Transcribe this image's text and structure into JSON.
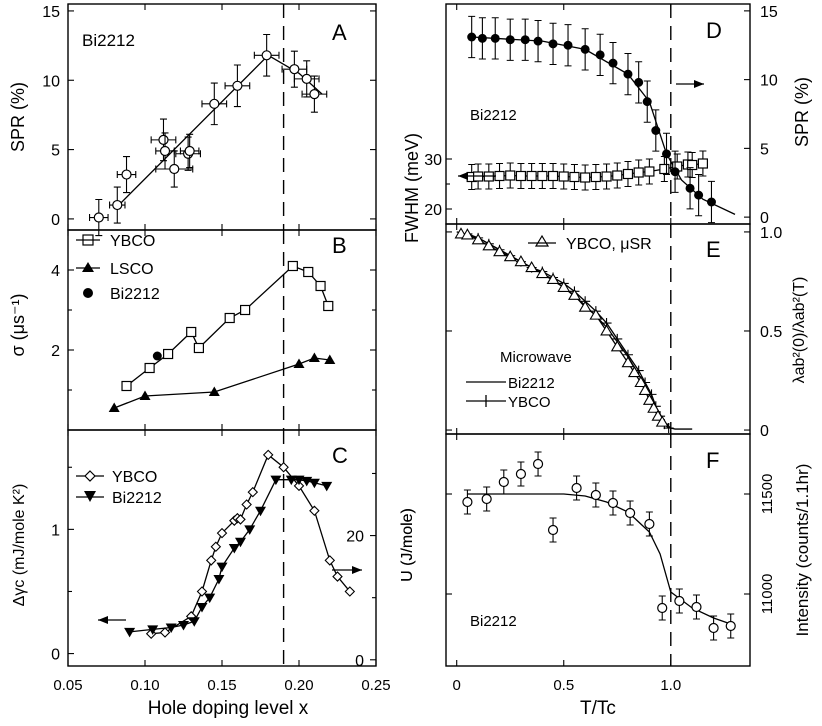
{
  "figure": {
    "left_xlabel": "Hole doping level x",
    "right_xlabel": "T/Tc",
    "left_xticks": [
      "0.05",
      "0.10",
      "0.15",
      "0.20",
      "0.25"
    ],
    "right_xticks": [
      "0",
      "0.5",
      "1.0"
    ]
  },
  "chart_data": [
    {
      "id": "A",
      "type": "scatter",
      "panel_letter": "A",
      "label": "Bi2212",
      "ylabel": "SPR (%)",
      "xlim": [
        0.05,
        0.25
      ],
      "ylim": [
        -0.8,
        15.5
      ],
      "yticks": [
        "0",
        "5",
        "10",
        "15"
      ],
      "series": [
        {
          "name": "Bi2212",
          "marker": "circle-open",
          "x": [
            0.07,
            0.082,
            0.088,
            0.112,
            0.113,
            0.119,
            0.128,
            0.129,
            0.145,
            0.16,
            0.179,
            0.197,
            0.205,
            0.21
          ],
          "y": [
            0.1,
            1.0,
            3.2,
            5.7,
            4.9,
            3.6,
            4.7,
            4.9,
            8.3,
            9.6,
            11.8,
            10.8,
            10.1,
            9.0
          ],
          "yerr": [
            1.3,
            1.3,
            1.3,
            1.5,
            1.3,
            1.3,
            1.2,
            1.2,
            1.5,
            1.5,
            1.5,
            1.3,
            1.3,
            1.3
          ],
          "xerr": [
            0.006,
            0.005,
            0.006,
            0.008,
            0.006,
            0.012,
            0.008,
            0.006,
            0.008,
            0.008,
            0.008,
            0.008,
            0.008,
            0.008
          ]
        }
      ],
      "fit_line": {
        "x": [
          0.083,
          0.18,
          0.2,
          0.215
        ],
        "y": [
          1.0,
          11.8,
          10.5,
          9.0
        ]
      },
      "vline_x": 0.19
    },
    {
      "id": "B",
      "type": "line",
      "panel_letter": "B",
      "ylabel": "σ (μs⁻¹)",
      "xlim": [
        0.05,
        0.25
      ],
      "ylim": [
        0,
        5
      ],
      "yticks": [
        "2",
        "4"
      ],
      "series": [
        {
          "name": "YBCO",
          "marker": "square-open",
          "x": [
            0.088,
            0.103,
            0.115,
            0.13,
            0.135,
            0.155,
            0.165,
            0.196,
            0.206,
            0.214,
            0.219
          ],
          "y": [
            1.1,
            1.55,
            1.9,
            2.45,
            2.05,
            2.8,
            3.0,
            4.1,
            3.95,
            3.6,
            3.1
          ]
        },
        {
          "name": "LSCO",
          "marker": "triangle-filled",
          "x": [
            0.08,
            0.1,
            0.145,
            0.2,
            0.21,
            0.22
          ],
          "y": [
            0.55,
            0.85,
            0.95,
            1.65,
            1.8,
            1.75
          ]
        },
        {
          "name": "Bi2212",
          "marker": "circle-filled",
          "x": [
            0.108
          ],
          "y": [
            1.85
          ]
        }
      ],
      "vline_x": 0.19
    },
    {
      "id": "C",
      "type": "line",
      "panel_letter": "C",
      "ylabel": "Δγc (mJ/mole K²)",
      "y2label": "U (J/mole)",
      "xlim": [
        0.05,
        0.25
      ],
      "ylim": [
        -0.1,
        1.8
      ],
      "y2lim": [
        -1,
        37
      ],
      "yticks": [
        "0",
        "1"
      ],
      "y2ticks": [
        "0",
        "20"
      ],
      "series": [
        {
          "name": "YBCO",
          "marker": "diamond-open",
          "axis": "left",
          "x": [
            0.104,
            0.113,
            0.13,
            0.137,
            0.143,
            0.146,
            0.15,
            0.158,
            0.16,
            0.162,
            0.166,
            0.17,
            0.18,
            0.19,
            0.2,
            0.21,
            0.22,
            0.225,
            0.233
          ],
          "y": [
            0.16,
            0.17,
            0.3,
            0.5,
            0.75,
            0.86,
            0.97,
            1.07,
            1.09,
            1.08,
            1.2,
            1.3,
            1.6,
            1.5,
            1.35,
            1.15,
            0.75,
            0.62,
            0.5
          ]
        },
        {
          "name": "Bi2212",
          "marker": "triangle-down-filled",
          "axis": "right",
          "x": [
            0.09,
            0.105,
            0.117,
            0.125,
            0.132,
            0.137,
            0.142,
            0.148,
            0.15,
            0.158,
            0.162,
            0.168,
            0.175,
            0.185,
            0.195,
            0.2,
            0.205,
            0.21,
            0.218
          ],
          "y": [
            4.5,
            4.9,
            5.2,
            5.6,
            6.2,
            8.5,
            10,
            13,
            15,
            18,
            19,
            21,
            24,
            29,
            29,
            29,
            28.8,
            28.5,
            28
          ]
        }
      ],
      "arrows": [
        {
          "side": "left"
        },
        {
          "side": "right"
        }
      ],
      "vline_x": 0.19
    },
    {
      "id": "D",
      "type": "scatter",
      "panel_letter": "D",
      "label": "Bi2212",
      "ylabel": "FWHM (meV)",
      "y2label": "SPR (%)",
      "xlim": [
        -0.05,
        1.37
      ],
      "ylim": [
        17,
        61
      ],
      "y2lim": [
        -0.5,
        15.5
      ],
      "yticks": [
        "20",
        "30"
      ],
      "y2ticks": [
        "0",
        "5",
        "10",
        "15"
      ],
      "series": [
        {
          "name": "SPR",
          "marker": "circle-filled",
          "axis": "right",
          "x": [
            0.07,
            0.12,
            0.18,
            0.25,
            0.32,
            0.38,
            0.45,
            0.52,
            0.6,
            0.67,
            0.73,
            0.8,
            0.85,
            0.89,
            0.93,
            0.98,
            1.02,
            1.09,
            1.13,
            1.19
          ],
          "y": [
            13.1,
            13.0,
            13.0,
            12.9,
            12.9,
            12.8,
            12.6,
            12.5,
            12.2,
            11.8,
            11.2,
            10.4,
            9.8,
            8.4,
            6.3,
            4.6,
            3.3,
            2.1,
            1.6,
            1.1
          ],
          "yerr": [
            1.5,
            1.5,
            1.5,
            1.5,
            1.5,
            1.5,
            1.5,
            1.5,
            1.5,
            1.5,
            1.5,
            1.5,
            1.5,
            1.5,
            1.5,
            1.5,
            1.5,
            1.5,
            1.5,
            1.5
          ]
        },
        {
          "name": "FWHM",
          "marker": "square-open",
          "axis": "left",
          "x": [
            0.07,
            0.1,
            0.15,
            0.2,
            0.25,
            0.3,
            0.35,
            0.4,
            0.45,
            0.5,
            0.55,
            0.6,
            0.65,
            0.7,
            0.75,
            0.8,
            0.85,
            0.9,
            0.97,
            1.03,
            1.08,
            1.1,
            1.15
          ],
          "y": [
            26.4,
            26.5,
            26.5,
            26.6,
            26.7,
            26.6,
            26.6,
            26.6,
            26.6,
            26.5,
            26.4,
            26.3,
            26.4,
            26.5,
            26.7,
            27.0,
            27.3,
            27.5,
            28.0,
            28.5,
            28.9,
            28.8,
            29.1
          ],
          "yerr": [
            2.5,
            2.5,
            2.5,
            2.5,
            2.5,
            2.5,
            2.5,
            2.5,
            2.5,
            2.5,
            2.5,
            2.5,
            2.5,
            2.5,
            2.5,
            2.5,
            2.5,
            2.5,
            2.5,
            2.5,
            2.5,
            2.5,
            2.5
          ]
        }
      ],
      "fit_line": {
        "x": [
          0.07,
          0.4,
          0.6,
          0.8,
          0.9,
          0.98,
          1.05,
          1.15,
          1.3
        ],
        "y": [
          13.1,
          12.8,
          12.2,
          10.4,
          8.4,
          4.6,
          2.7,
          1.3,
          0.2
        ]
      },
      "arrows": [
        {
          "side": "left"
        },
        {
          "side": "right"
        }
      ],
      "vline_x": 1.0
    },
    {
      "id": "E",
      "type": "line",
      "panel_letter": "E",
      "legend_title": "Microwave",
      "ylabel": "λab²(0)/λab²(T)",
      "xlim": [
        -0.05,
        1.37
      ],
      "ylim": [
        -0.02,
        1.04
      ],
      "y2ticks": [
        "0",
        "0.5",
        "1.0"
      ],
      "series": [
        {
          "name": "YBCO, μSR",
          "marker": "triangle-open",
          "x": [
            0.02,
            0.05,
            0.1,
            0.15,
            0.2,
            0.25,
            0.3,
            0.35,
            0.4,
            0.45,
            0.5,
            0.55,
            0.6,
            0.65,
            0.7,
            0.75,
            0.8,
            0.83,
            0.86,
            0.88,
            0.9,
            0.92,
            0.94,
            0.96
          ],
          "y": [
            0.99,
            0.985,
            0.96,
            0.93,
            0.9,
            0.875,
            0.85,
            0.82,
            0.79,
            0.76,
            0.72,
            0.68,
            0.62,
            0.58,
            0.5,
            0.42,
            0.34,
            0.29,
            0.24,
            0.2,
            0.15,
            0.11,
            0.07,
            0.04
          ]
        },
        {
          "name": "Bi2212",
          "marker": "none",
          "x": [
            0,
            0.1,
            0.2,
            0.3,
            0.4,
            0.5,
            0.6,
            0.7,
            0.8,
            0.85,
            0.9,
            0.95,
            0.98,
            1.0,
            1.02,
            1.1
          ],
          "y": [
            1.0,
            0.97,
            0.91,
            0.85,
            0.79,
            0.72,
            0.63,
            0.52,
            0.37,
            0.28,
            0.18,
            0.08,
            0.03,
            0.01,
            0.005,
            0.005
          ]
        },
        {
          "name": "YBCO",
          "marker": "plus",
          "x": [
            0.05,
            0.1,
            0.15,
            0.2,
            0.25,
            0.3,
            0.35,
            0.4,
            0.45,
            0.5,
            0.55,
            0.6,
            0.65,
            0.7,
            0.75,
            0.8,
            0.85,
            0.88,
            0.91,
            0.93,
            0.95,
            0.97,
            0.99
          ],
          "y": [
            0.99,
            0.97,
            0.94,
            0.91,
            0.88,
            0.85,
            0.82,
            0.8,
            0.77,
            0.74,
            0.7,
            0.65,
            0.6,
            0.54,
            0.46,
            0.38,
            0.3,
            0.24,
            0.18,
            0.12,
            0.07,
            0.03,
            0.01
          ]
        }
      ],
      "vline_x": 1.0
    },
    {
      "id": "F",
      "type": "scatter",
      "panel_letter": "F",
      "label": "Bi2212",
      "ylabel": "U (J/mole)",
      "y2label": "Intensity (counts/1.1hr)",
      "xlim": [
        -0.05,
        1.37
      ],
      "ylim": [
        10640,
        11800
      ],
      "y2ticks": [
        "11000",
        "11500"
      ],
      "series": [
        {
          "name": "Bi2212",
          "marker": "circle-open",
          "x": [
            0.05,
            0.14,
            0.22,
            0.3,
            0.38,
            0.45,
            0.56,
            0.65,
            0.73,
            0.81,
            0.9,
            0.96,
            1.04,
            1.12,
            1.2,
            1.28
          ],
          "y": [
            11460,
            11475,
            11560,
            11600,
            11650,
            11320,
            11530,
            11495,
            11455,
            11405,
            11350,
            10930,
            10965,
            10935,
            10830,
            10840
          ],
          "yerr": [
            60,
            60,
            60,
            60,
            60,
            60,
            60,
            60,
            60,
            60,
            60,
            60,
            60,
            60,
            60,
            60
          ]
        }
      ],
      "fit_line": {
        "x": [
          0.05,
          0.5,
          0.6,
          0.7,
          0.8,
          0.9,
          0.95,
          1.0,
          1.1,
          1.2,
          1.28
        ],
        "y": [
          11500,
          11500,
          11490,
          11460,
          11410,
          11310,
          11200,
          11010,
          10930,
          10880,
          10850
        ]
      },
      "vline_x": 1.0
    }
  ]
}
